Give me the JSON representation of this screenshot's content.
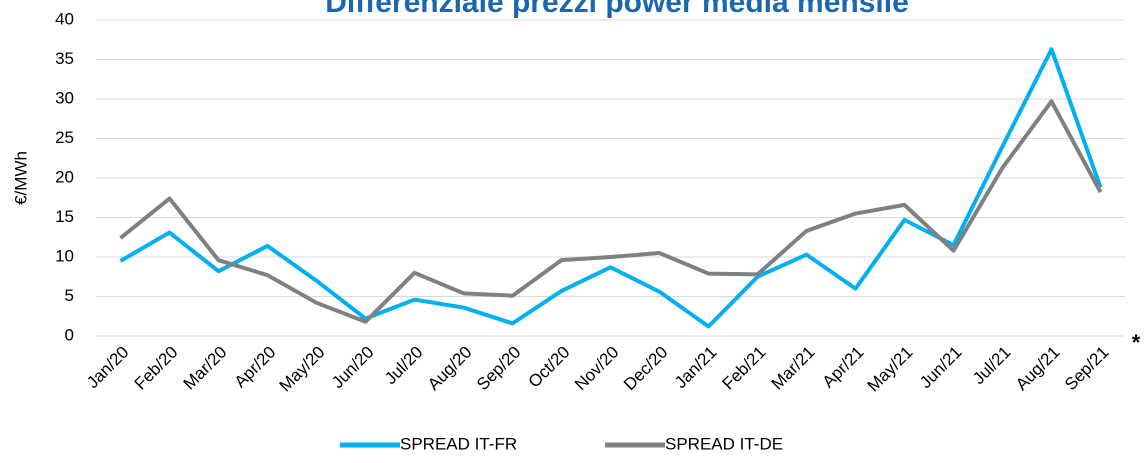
{
  "chart_data": {
    "type": "line",
    "title": "Differenziale prezzi power media mensile",
    "y_label": "€/MWh",
    "annotation": "*",
    "categories": [
      "Jan/20",
      "Feb/20",
      "Mar/20",
      "Apr/20",
      "May/20",
      "Jun/20",
      "Jul/20",
      "Aug/20",
      "Sep/20",
      "Oct/20",
      "Nov/20",
      "Dec/20",
      "Jan/21",
      "Feb/21",
      "Mar/21",
      "Apr/21",
      "May/21",
      "Jun/21",
      "Jul/21",
      "Aug/21",
      "Sep/21"
    ],
    "series": [
      {
        "name": "SPREAD IT-FR",
        "color": "#00b0f0",
        "values": [
          9.5,
          13.1,
          8.2,
          11.4,
          7.0,
          2.2,
          4.6,
          3.6,
          1.6,
          5.7,
          8.7,
          5.6,
          1.2,
          7.5,
          10.3,
          6.0,
          14.7,
          11.5,
          24.0,
          36.3,
          18.8
        ]
      },
      {
        "name": "SPREAD IT-DE",
        "color": "#808080",
        "values": [
          12.4,
          17.4,
          9.6,
          7.7,
          4.2,
          1.8,
          8.0,
          5.4,
          5.1,
          9.6,
          10.0,
          10.5,
          7.9,
          7.8,
          13.3,
          15.5,
          16.6,
          10.8,
          21.3,
          29.7,
          18.2
        ]
      }
    ],
    "ylim": [
      0,
      40
    ],
    "yticks": [
      0,
      5,
      10,
      15,
      20,
      25,
      30,
      35,
      40
    ],
    "grid": true,
    "legend": "bottom"
  }
}
